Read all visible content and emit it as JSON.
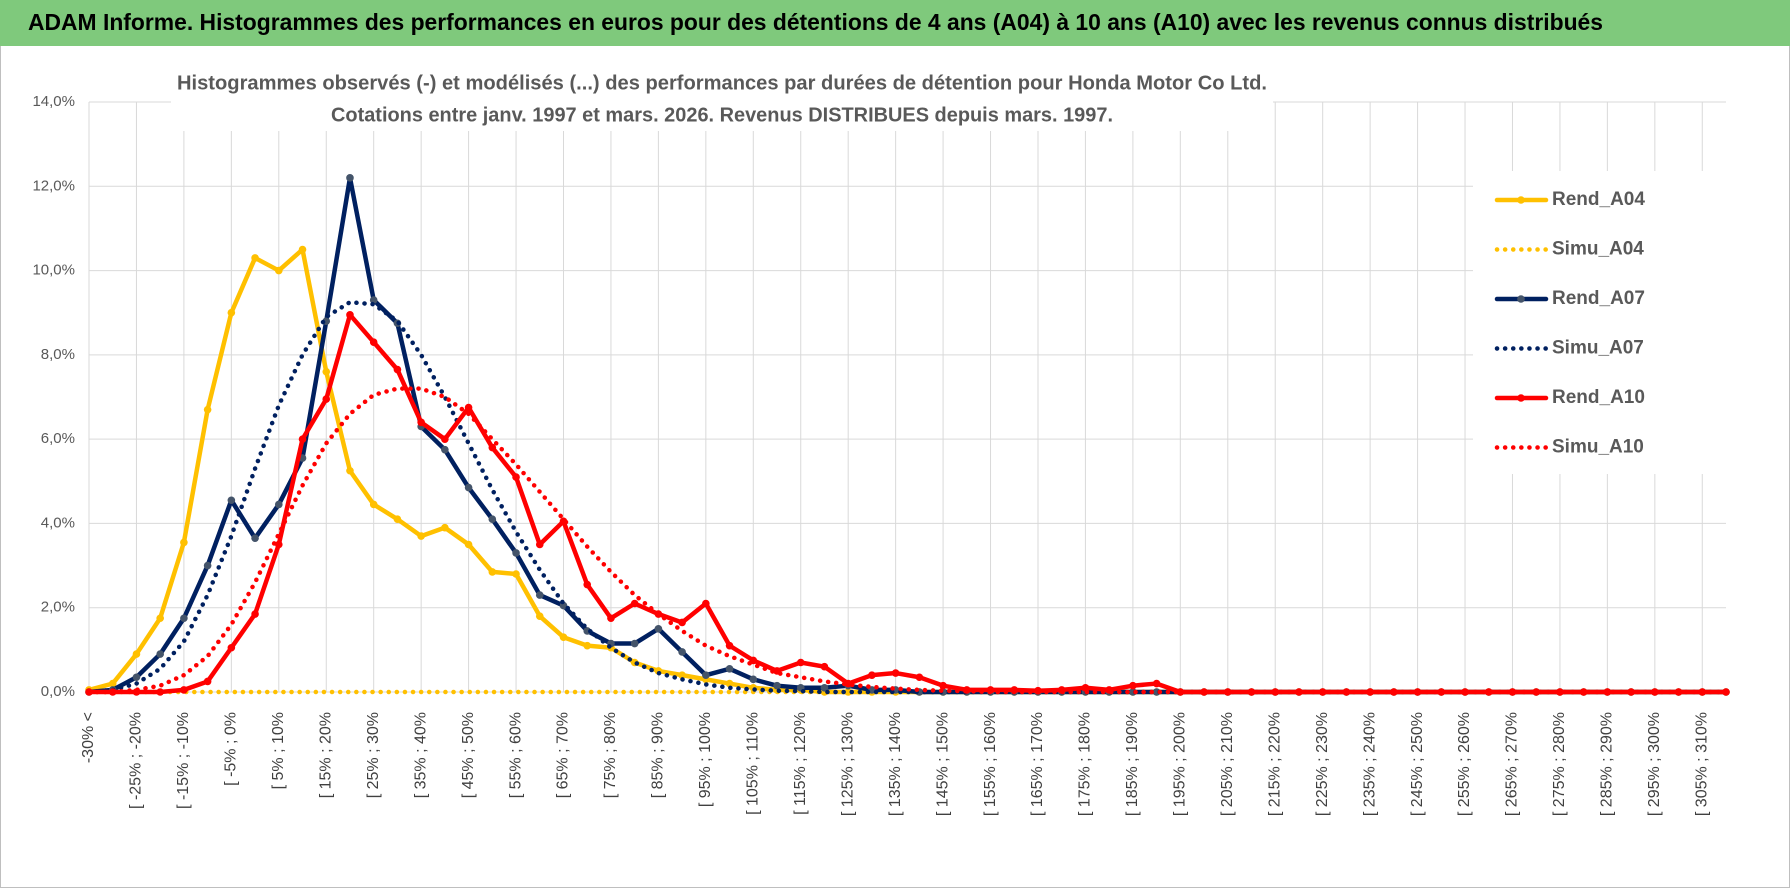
{
  "header": {
    "title": "ADAM Informe. Histogrammes des performances en euros pour des détentions de 4 ans (A04) à 10 ans (A10) avec les revenus connus distribués"
  },
  "chart_data": {
    "type": "line",
    "title": "Histogrammes observés (-) et modélisés (...) des performances par durées de détention pour Honda Motor Co Ltd.",
    "subtitle": "Cotations entre janv. 1997 et mars. 2026.  Revenus DISTRIBUES depuis mars. 1997.",
    "categories": [
      "-30% <",
      null,
      "[ -25% ; -20%",
      null,
      "[ -15% ; -10%",
      null,
      "[ -5% ; 0%",
      null,
      "[ 5% ; 10%",
      null,
      "[ 15% ; 20%",
      null,
      "[ 25% ; 30%",
      null,
      "[ 35% ; 40%",
      null,
      "[ 45% ; 50%",
      null,
      "[ 55% ; 60%",
      null,
      "[ 65% ; 70%",
      null,
      "[ 75% ; 80%",
      null,
      "[ 85% ; 90%",
      null,
      "[ 95% ; 100%",
      null,
      "[ 105% ; 110%",
      null,
      "[ 115% ; 120%",
      null,
      "[ 125% ; 130%",
      null,
      "[ 135% ; 140%",
      null,
      "[ 145% ; 150%",
      null,
      "[ 155% ; 160%",
      null,
      "[ 165% ; 170%",
      null,
      "[ 175% ; 180%",
      null,
      "[ 185% ; 190%",
      null,
      "[ 195% ; 200%",
      null,
      "[ 205% ; 210%",
      null,
      "[ 215% ; 220%",
      null,
      "[ 225% ; 230%",
      null,
      "[ 235% ; 240%",
      null,
      "[ 245% ; 250%",
      null,
      "[ 255% ; 260%",
      null,
      "[ 265% ; 270%",
      null,
      "[ 275% ; 280%",
      null,
      "[ 285% ; 290%",
      null,
      "[ 295% ; 300%",
      null,
      "[ 305% ; 310%",
      null
    ],
    "series": [
      {
        "name": "Rend_A04",
        "color": "#FFC000",
        "style": "solid",
        "values": [
          0.05,
          0.2,
          0.9,
          1.75,
          3.55,
          6.7,
          9.0,
          10.3,
          10.0,
          10.5,
          7.6,
          5.25,
          4.45,
          4.1,
          3.7,
          3.9,
          3.5,
          2.85,
          2.8,
          1.8,
          1.3,
          1.1,
          1.05,
          0.7,
          0.5,
          0.4,
          0.3,
          0.2,
          0.1,
          0.05,
          0.05,
          0,
          0,
          0,
          0,
          0,
          0,
          0,
          0,
          0,
          0,
          0,
          0,
          0,
          0,
          0,
          0,
          0,
          0,
          0,
          0,
          0,
          0,
          0,
          0,
          0,
          0,
          0,
          0,
          0,
          0,
          0,
          0,
          0,
          0,
          0,
          0,
          0,
          0,
          0
        ]
      },
      {
        "name": "Simu_A04",
        "color": "#FFC000",
        "style": "dotted",
        "values": [
          0,
          0,
          0,
          0,
          0,
          0,
          0,
          0,
          0,
          0,
          0,
          0,
          0,
          0,
          0,
          0,
          0,
          0,
          0,
          0,
          0,
          0,
          0,
          0,
          0,
          0,
          0,
          0,
          0,
          0,
          0,
          0,
          0,
          0,
          0,
          0,
          0,
          0,
          0,
          0,
          0,
          0,
          0,
          0,
          0,
          0,
          0,
          0,
          0,
          0,
          0,
          0,
          0,
          0,
          0,
          0,
          0,
          0,
          0,
          0,
          0,
          0,
          0,
          0,
          0,
          0,
          0,
          0,
          0,
          0
        ]
      },
      {
        "name": "Rend_A07",
        "color": "#002060",
        "marker_color": "#44546A",
        "style": "solid",
        "values": [
          0,
          0.05,
          0.35,
          0.9,
          1.75,
          3.0,
          4.55,
          3.65,
          4.45,
          5.55,
          8.8,
          12.2,
          9.3,
          8.75,
          6.3,
          5.75,
          4.85,
          4.1,
          3.3,
          2.3,
          2.05,
          1.45,
          1.15,
          1.15,
          1.5,
          0.95,
          0.4,
          0.55,
          0.3,
          0.15,
          0.1,
          0.1,
          0.15,
          0.05,
          0.05,
          0,
          0,
          0,
          0,
          0,
          0,
          0,
          0,
          0,
          0,
          0,
          0,
          0,
          0,
          0,
          0,
          0,
          0,
          0,
          0,
          0,
          0,
          0,
          0,
          0,
          0,
          0,
          0,
          0,
          0,
          0,
          0,
          0,
          0,
          0
        ]
      },
      {
        "name": "Simu_A07",
        "color": "#002060",
        "style": "dotted",
        "values": [
          0,
          0.05,
          0.2,
          0.55,
          1.2,
          2.3,
          3.7,
          5.3,
          6.8,
          8.0,
          8.9,
          9.25,
          9.2,
          8.8,
          8.0,
          7.0,
          5.9,
          4.8,
          3.8,
          2.9,
          2.1,
          1.5,
          1.05,
          0.7,
          0.45,
          0.3,
          0.18,
          0.1,
          0.06,
          0.03,
          0.02,
          0,
          0,
          0,
          0,
          0,
          0,
          0,
          0,
          0,
          0,
          0,
          0,
          0,
          0,
          0,
          0,
          0,
          0,
          0,
          0,
          0,
          0,
          0,
          0,
          0,
          0,
          0,
          0,
          0,
          0,
          0,
          0,
          0,
          0,
          0,
          0,
          0,
          0,
          0
        ]
      },
      {
        "name": "Rend_A10",
        "color": "#FF0000",
        "style": "solid",
        "values": [
          0,
          0,
          0,
          0,
          0.05,
          0.25,
          1.05,
          1.85,
          3.5,
          6.0,
          6.95,
          8.95,
          8.3,
          7.65,
          6.4,
          6.0,
          6.75,
          5.8,
          5.1,
          3.5,
          4.05,
          2.55,
          1.75,
          2.1,
          1.85,
          1.65,
          2.1,
          1.1,
          0.75,
          0.5,
          0.7,
          0.6,
          0.2,
          0.4,
          0.45,
          0.35,
          0.15,
          0.05,
          0.05,
          0.05,
          0.03,
          0.05,
          0.1,
          0.05,
          0.15,
          0.2,
          0,
          0,
          0,
          0,
          0,
          0,
          0,
          0,
          0,
          0,
          0,
          0,
          0,
          0,
          0,
          0,
          0,
          0,
          0,
          0,
          0,
          0,
          0,
          0
        ]
      },
      {
        "name": "Simu_A10",
        "color": "#FF0000",
        "style": "dotted",
        "values": [
          0,
          0,
          0.05,
          0.15,
          0.4,
          0.85,
          1.6,
          2.6,
          3.75,
          4.9,
          5.9,
          6.6,
          7.05,
          7.2,
          7.2,
          7.0,
          6.6,
          6.0,
          5.4,
          4.75,
          4.1,
          3.45,
          2.85,
          2.3,
          1.85,
          1.45,
          1.1,
          0.85,
          0.65,
          0.45,
          0.35,
          0.25,
          0.18,
          0.12,
          0.08,
          0.05,
          0.03,
          0.02,
          0,
          0,
          0,
          0,
          0,
          0,
          0,
          0,
          0,
          0,
          0,
          0,
          0,
          0,
          0,
          0,
          0,
          0,
          0,
          0,
          0,
          0,
          0,
          0,
          0,
          0,
          0,
          0,
          0,
          0,
          0,
          0
        ]
      }
    ],
    "ylim": [
      0,
      14
    ],
    "yticks": [
      {
        "value": 0,
        "label": "0,0%"
      },
      {
        "value": 2,
        "label": "2,0%"
      },
      {
        "value": 4,
        "label": "4,0%"
      },
      {
        "value": 6,
        "label": "6,0%"
      },
      {
        "value": 8,
        "label": "8,0%"
      },
      {
        "value": 10,
        "label": "10,0%"
      },
      {
        "value": 12,
        "label": "12,0%"
      },
      {
        "value": 14,
        "label": "14,0%"
      }
    ],
    "grid": true,
    "legend": "right"
  }
}
